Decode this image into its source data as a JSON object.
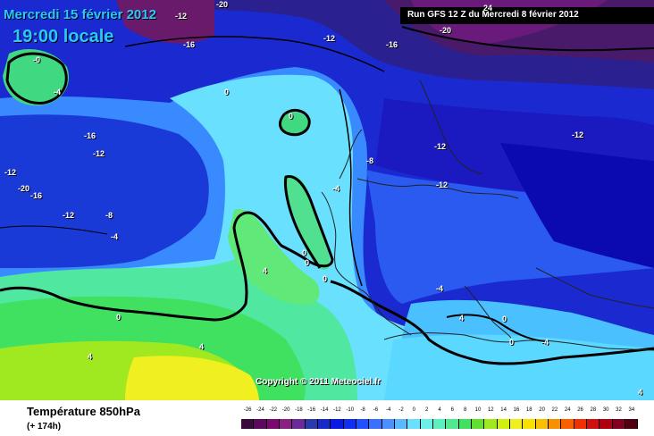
{
  "header": {
    "date": "Mercredi 15 février 2012",
    "time": "19:00 locale",
    "run": "Run GFS 12 Z du Mercredi 8 février 2012"
  },
  "copyright": "Copyright © 2011 Meteociel.fr",
  "legend": {
    "title": "Température 850hPa",
    "lead_time": "(+ 174h)",
    "scale_values": [
      "-26",
      "-24",
      "-22",
      "-20",
      "-18",
      "-16",
      "-14",
      "-12",
      "-10",
      "-8",
      "-6",
      "-4",
      "-2",
      "0",
      "2",
      "4",
      "6",
      "8",
      "10",
      "12",
      "14",
      "16",
      "18",
      "20",
      "22",
      "24",
      "26",
      "28",
      "30",
      "32",
      "34"
    ],
    "scale_colors": [
      "#3a0a3a",
      "#5a0a5a",
      "#7a0a70",
      "#8a2080",
      "#6a2a9a",
      "#2a3aa8",
      "#1a2ac8",
      "#0a1ae0",
      "#1030f0",
      "#2050ff",
      "#3a70ff",
      "#4a90ff",
      "#5ab8ff",
      "#6ae0ff",
      "#6af0e8",
      "#5af0c0",
      "#50e890",
      "#40e060",
      "#60e030",
      "#a0e820",
      "#d0f010",
      "#f0f020",
      "#f8e000",
      "#f8c000",
      "#f89000",
      "#f86000",
      "#f03000",
      "#d01010",
      "#b00010",
      "#800020",
      "#500010"
    ]
  },
  "isotherm_labels": [
    {
      "text": "-20"
    },
    {
      "text": "-12"
    },
    {
      "text": "-16"
    },
    {
      "text": "-12"
    },
    {
      "text": "-16"
    },
    {
      "text": "-20"
    },
    {
      "text": "24"
    },
    {
      "text": "-0"
    },
    {
      "text": "-4"
    },
    {
      "text": "0"
    },
    {
      "text": "0"
    },
    {
      "text": "-16"
    },
    {
      "text": "-12"
    },
    {
      "text": "-12"
    },
    {
      "text": "-20"
    },
    {
      "text": "-16"
    },
    {
      "text": "-12"
    },
    {
      "text": "-8"
    },
    {
      "text": "-4"
    },
    {
      "text": "-8"
    },
    {
      "text": "-4"
    },
    {
      "text": "-12"
    },
    {
      "text": "-12"
    },
    {
      "text": "-12"
    },
    {
      "text": "4"
    },
    {
      "text": "0"
    },
    {
      "text": "0"
    },
    {
      "text": "0"
    },
    {
      "text": "0"
    },
    {
      "text": "4"
    },
    {
      "text": "4"
    },
    {
      "text": "-4"
    },
    {
      "text": "4"
    },
    {
      "text": "0"
    },
    {
      "text": "0"
    },
    {
      "text": "-4"
    },
    {
      "text": "4"
    }
  ]
}
